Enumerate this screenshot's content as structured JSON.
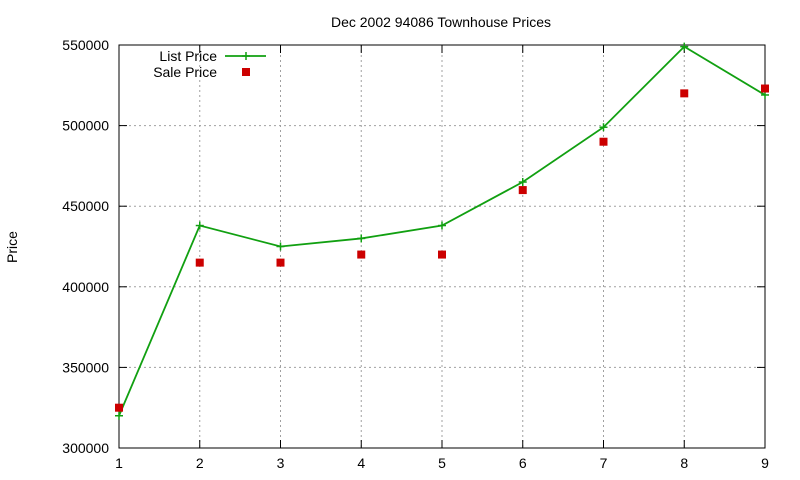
{
  "chart_data": {
    "type": "line",
    "title": "Dec 2002 94086 Townhouse Prices",
    "xlabel": "",
    "ylabel": "Price",
    "x": [
      1,
      2,
      3,
      4,
      5,
      6,
      7,
      8,
      9
    ],
    "xlim": [
      1,
      9
    ],
    "ylim": [
      300000,
      550000
    ],
    "xticks": [
      1,
      2,
      3,
      4,
      5,
      6,
      7,
      8,
      9
    ],
    "yticks": [
      300000,
      350000,
      400000,
      450000,
      500000,
      550000
    ],
    "grid": true,
    "legend_position": "top-left",
    "series": [
      {
        "name": "List Price",
        "style": "line-points",
        "marker": "plus",
        "color": "#11a011",
        "values": [
          320000,
          438000,
          425000,
          430000,
          438000,
          465000,
          499000,
          549000,
          519000
        ]
      },
      {
        "name": "Sale Price",
        "style": "points",
        "marker": "square",
        "color": "#cc0000",
        "values": [
          325000,
          415000,
          415000,
          420000,
          420000,
          460000,
          490000,
          520000,
          523000
        ]
      }
    ]
  }
}
